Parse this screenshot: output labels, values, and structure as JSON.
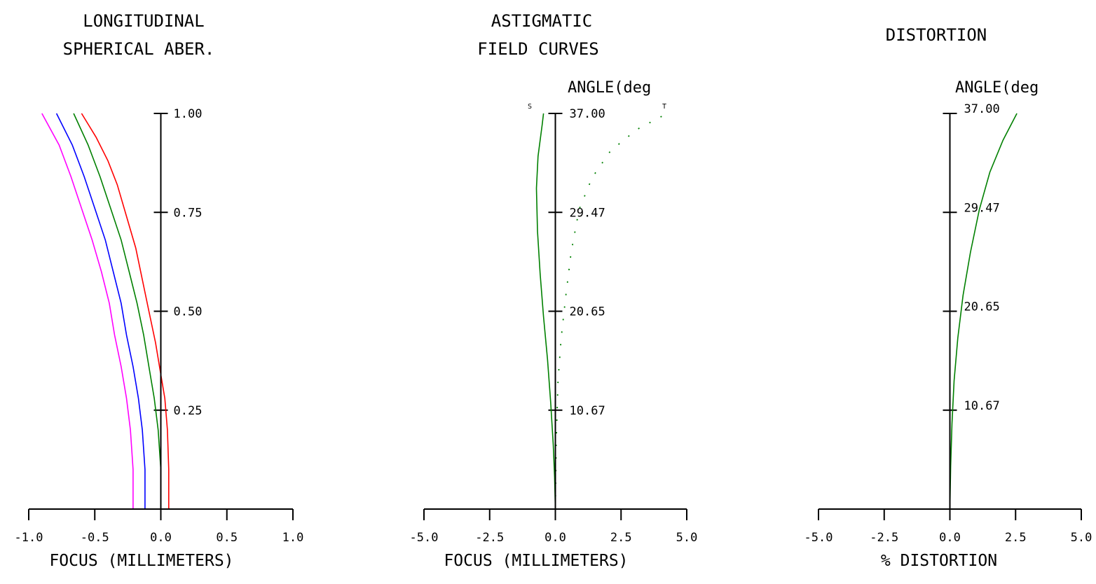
{
  "chart_data": [
    {
      "type": "line",
      "id": "spherical",
      "title_lines": [
        "LONGITUDINAL",
        "SPHERICAL ABER."
      ],
      "xlabel": "FOCUS (MILLIMETERS)",
      "xlim": [
        -1.0,
        1.0
      ],
      "ylim": [
        0,
        1
      ],
      "x_ticks": [
        "-1.0",
        "-0.5",
        "0.0",
        "0.5",
        "1.0"
      ],
      "x_tick_values": [
        -1.0,
        -0.5,
        0.0,
        0.5,
        1.0
      ],
      "y_ticks": [
        "0.25",
        "0.50",
        "0.75",
        "1.00"
      ],
      "y_tick_values": [
        0.25,
        0.5,
        0.75,
        1.0
      ],
      "series": [
        {
          "color": "#ff0000",
          "style": "solid",
          "points": [
            [
              0.06,
              0
            ],
            [
              0.06,
              0.1
            ],
            [
              0.05,
              0.2
            ],
            [
              0.03,
              0.28
            ],
            [
              0.0,
              0.34
            ],
            [
              -0.04,
              0.42
            ],
            [
              -0.09,
              0.5
            ],
            [
              -0.14,
              0.58
            ],
            [
              -0.19,
              0.66
            ],
            [
              -0.26,
              0.74
            ],
            [
              -0.33,
              0.82
            ],
            [
              -0.4,
              0.88
            ],
            [
              -0.49,
              0.94
            ],
            [
              -0.6,
              1.0
            ]
          ]
        },
        {
          "color": "#008000",
          "style": "solid",
          "points": [
            [
              0.0,
              0
            ],
            [
              0.0,
              0.1
            ],
            [
              -0.02,
              0.2
            ],
            [
              -0.05,
              0.28
            ],
            [
              -0.09,
              0.36
            ],
            [
              -0.13,
              0.44
            ],
            [
              -0.18,
              0.52
            ],
            [
              -0.24,
              0.6
            ],
            [
              -0.3,
              0.68
            ],
            [
              -0.38,
              0.76
            ],
            [
              -0.46,
              0.84
            ],
            [
              -0.55,
              0.92
            ],
            [
              -0.66,
              1.0
            ]
          ]
        },
        {
          "color": "#0000ff",
          "style": "solid",
          "points": [
            [
              -0.12,
              0
            ],
            [
              -0.12,
              0.1
            ],
            [
              -0.14,
              0.2
            ],
            [
              -0.17,
              0.28
            ],
            [
              -0.21,
              0.36
            ],
            [
              -0.26,
              0.44
            ],
            [
              -0.3,
              0.52
            ],
            [
              -0.36,
              0.6
            ],
            [
              -0.42,
              0.68
            ],
            [
              -0.5,
              0.76
            ],
            [
              -0.58,
              0.84
            ],
            [
              -0.67,
              0.92
            ],
            [
              -0.79,
              1.0
            ]
          ]
        },
        {
          "color": "#ff00ff",
          "style": "solid",
          "points": [
            [
              -0.21,
              0
            ],
            [
              -0.21,
              0.1
            ],
            [
              -0.23,
              0.2
            ],
            [
              -0.26,
              0.28
            ],
            [
              -0.3,
              0.36
            ],
            [
              -0.35,
              0.44
            ],
            [
              -0.39,
              0.52
            ],
            [
              -0.45,
              0.6
            ],
            [
              -0.52,
              0.68
            ],
            [
              -0.6,
              0.76
            ],
            [
              -0.68,
              0.84
            ],
            [
              -0.77,
              0.92
            ],
            [
              -0.9,
              1.0
            ]
          ]
        }
      ]
    },
    {
      "type": "line",
      "id": "astigmatic",
      "title_lines": [
        "ASTIGMATIC",
        "FIELD CURVES"
      ],
      "ylabel": "ANGLE(deg",
      "xlabel": "FOCUS (MILLIMETERS)",
      "xlim": [
        -5.0,
        5.0
      ],
      "ylim": [
        0,
        37.0
      ],
      "x_ticks": [
        "-5.0",
        "-2.5",
        "0.0",
        "2.5",
        "5.0"
      ],
      "x_tick_values": [
        -5.0,
        -2.5,
        0.0,
        2.5,
        5.0
      ],
      "y_ticks": [
        "10.67",
        "20.65",
        "29.47",
        "37.00"
      ],
      "y_tick_values": [
        9.25,
        18.5,
        27.75,
        37.0
      ],
      "curve_markers": [
        "S",
        "T"
      ],
      "series": [
        {
          "color": "#008000",
          "style": "solid",
          "points": [
            [
              0,
              0
            ],
            [
              -0.03,
              3
            ],
            [
              -0.08,
              6
            ],
            [
              -0.18,
              10
            ],
            [
              -0.3,
              14
            ],
            [
              -0.45,
              18
            ],
            [
              -0.58,
              22
            ],
            [
              -0.68,
              26
            ],
            [
              -0.72,
              30
            ],
            [
              -0.66,
              33
            ],
            [
              -0.5,
              36
            ],
            [
              -0.45,
              37
            ]
          ]
        },
        {
          "color": "#008000",
          "style": "dotted",
          "points": [
            [
              0,
              0
            ],
            [
              0.03,
              6
            ],
            [
              0.1,
              12
            ],
            [
              0.22,
              16
            ],
            [
              0.4,
              20
            ],
            [
              0.6,
              24
            ],
            [
              0.9,
              28
            ],
            [
              1.4,
              31
            ],
            [
              2.1,
              33.5
            ],
            [
              3.1,
              35.5
            ],
            [
              4.1,
              36.8
            ],
            [
              4.3,
              37
            ]
          ]
        }
      ]
    },
    {
      "type": "line",
      "id": "distortion",
      "title_lines": [
        "DISTORTION"
      ],
      "ylabel": "ANGLE(deg",
      "xlabel": "% DISTORTION",
      "xlim": [
        -5.0,
        5.0
      ],
      "ylim": [
        0,
        37.0
      ],
      "x_ticks": [
        "-5.0",
        "-2.5",
        "0.0",
        "2.5",
        "5.0"
      ],
      "x_tick_values": [
        -5.0,
        -2.5,
        0.0,
        2.5,
        5.0
      ],
      "y_ticks": [
        "10.67",
        "20.65",
        "29.47",
        "37.00"
      ],
      "y_tick_values": [
        9.25,
        18.5,
        27.75,
        37.0
      ],
      "series": [
        {
          "color": "#008000",
          "style": "solid",
          "points": [
            [
              0,
              0
            ],
            [
              0.03,
              4
            ],
            [
              0.08,
              8
            ],
            [
              0.16,
              12
            ],
            [
              0.3,
              16
            ],
            [
              0.5,
              20
            ],
            [
              0.78,
              24
            ],
            [
              1.12,
              28
            ],
            [
              1.52,
              31.5
            ],
            [
              2.02,
              34.5
            ],
            [
              2.55,
              37
            ]
          ]
        }
      ]
    }
  ]
}
